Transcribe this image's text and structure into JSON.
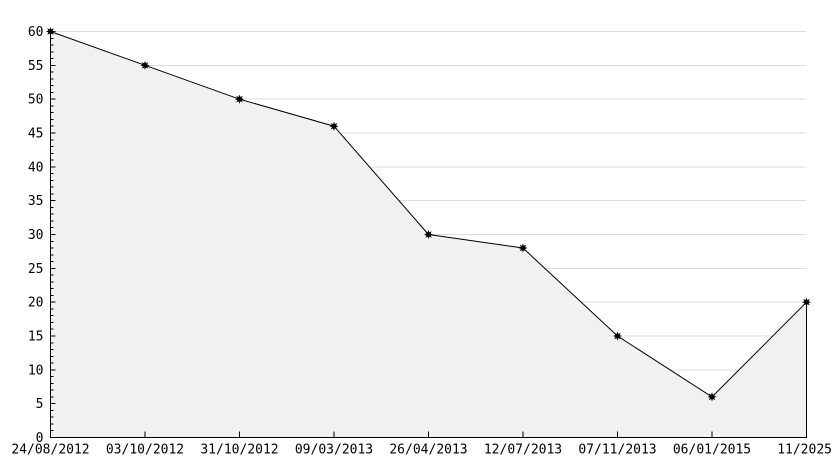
{
  "chart_data": {
    "type": "area",
    "title": "",
    "xlabel": "",
    "ylabel": "",
    "categories": [
      "24/08/2012",
      "03/10/2012",
      "31/10/2012",
      "09/03/2013",
      "26/04/2013",
      "12/07/2013",
      "07/11/2013",
      "06/01/2015",
      "11/2025"
    ],
    "values": [
      60,
      55,
      50,
      46,
      30,
      28,
      15,
      6,
      20
    ],
    "ylim": [
      0,
      60
    ],
    "yticks": [
      0,
      5,
      10,
      15,
      20,
      25,
      30,
      35,
      40,
      45,
      50,
      55,
      60
    ],
    "y_minor_step": 1,
    "grid": "horizontal-major",
    "legend": "none",
    "marker": "8-point-star",
    "colors": {
      "background": "#ffffff",
      "area_fill": "#f1f1f1",
      "gridline": "#dcdcdc",
      "line": "#000000",
      "marker": "#000000",
      "axis": "#000000",
      "label": "#000000"
    }
  }
}
